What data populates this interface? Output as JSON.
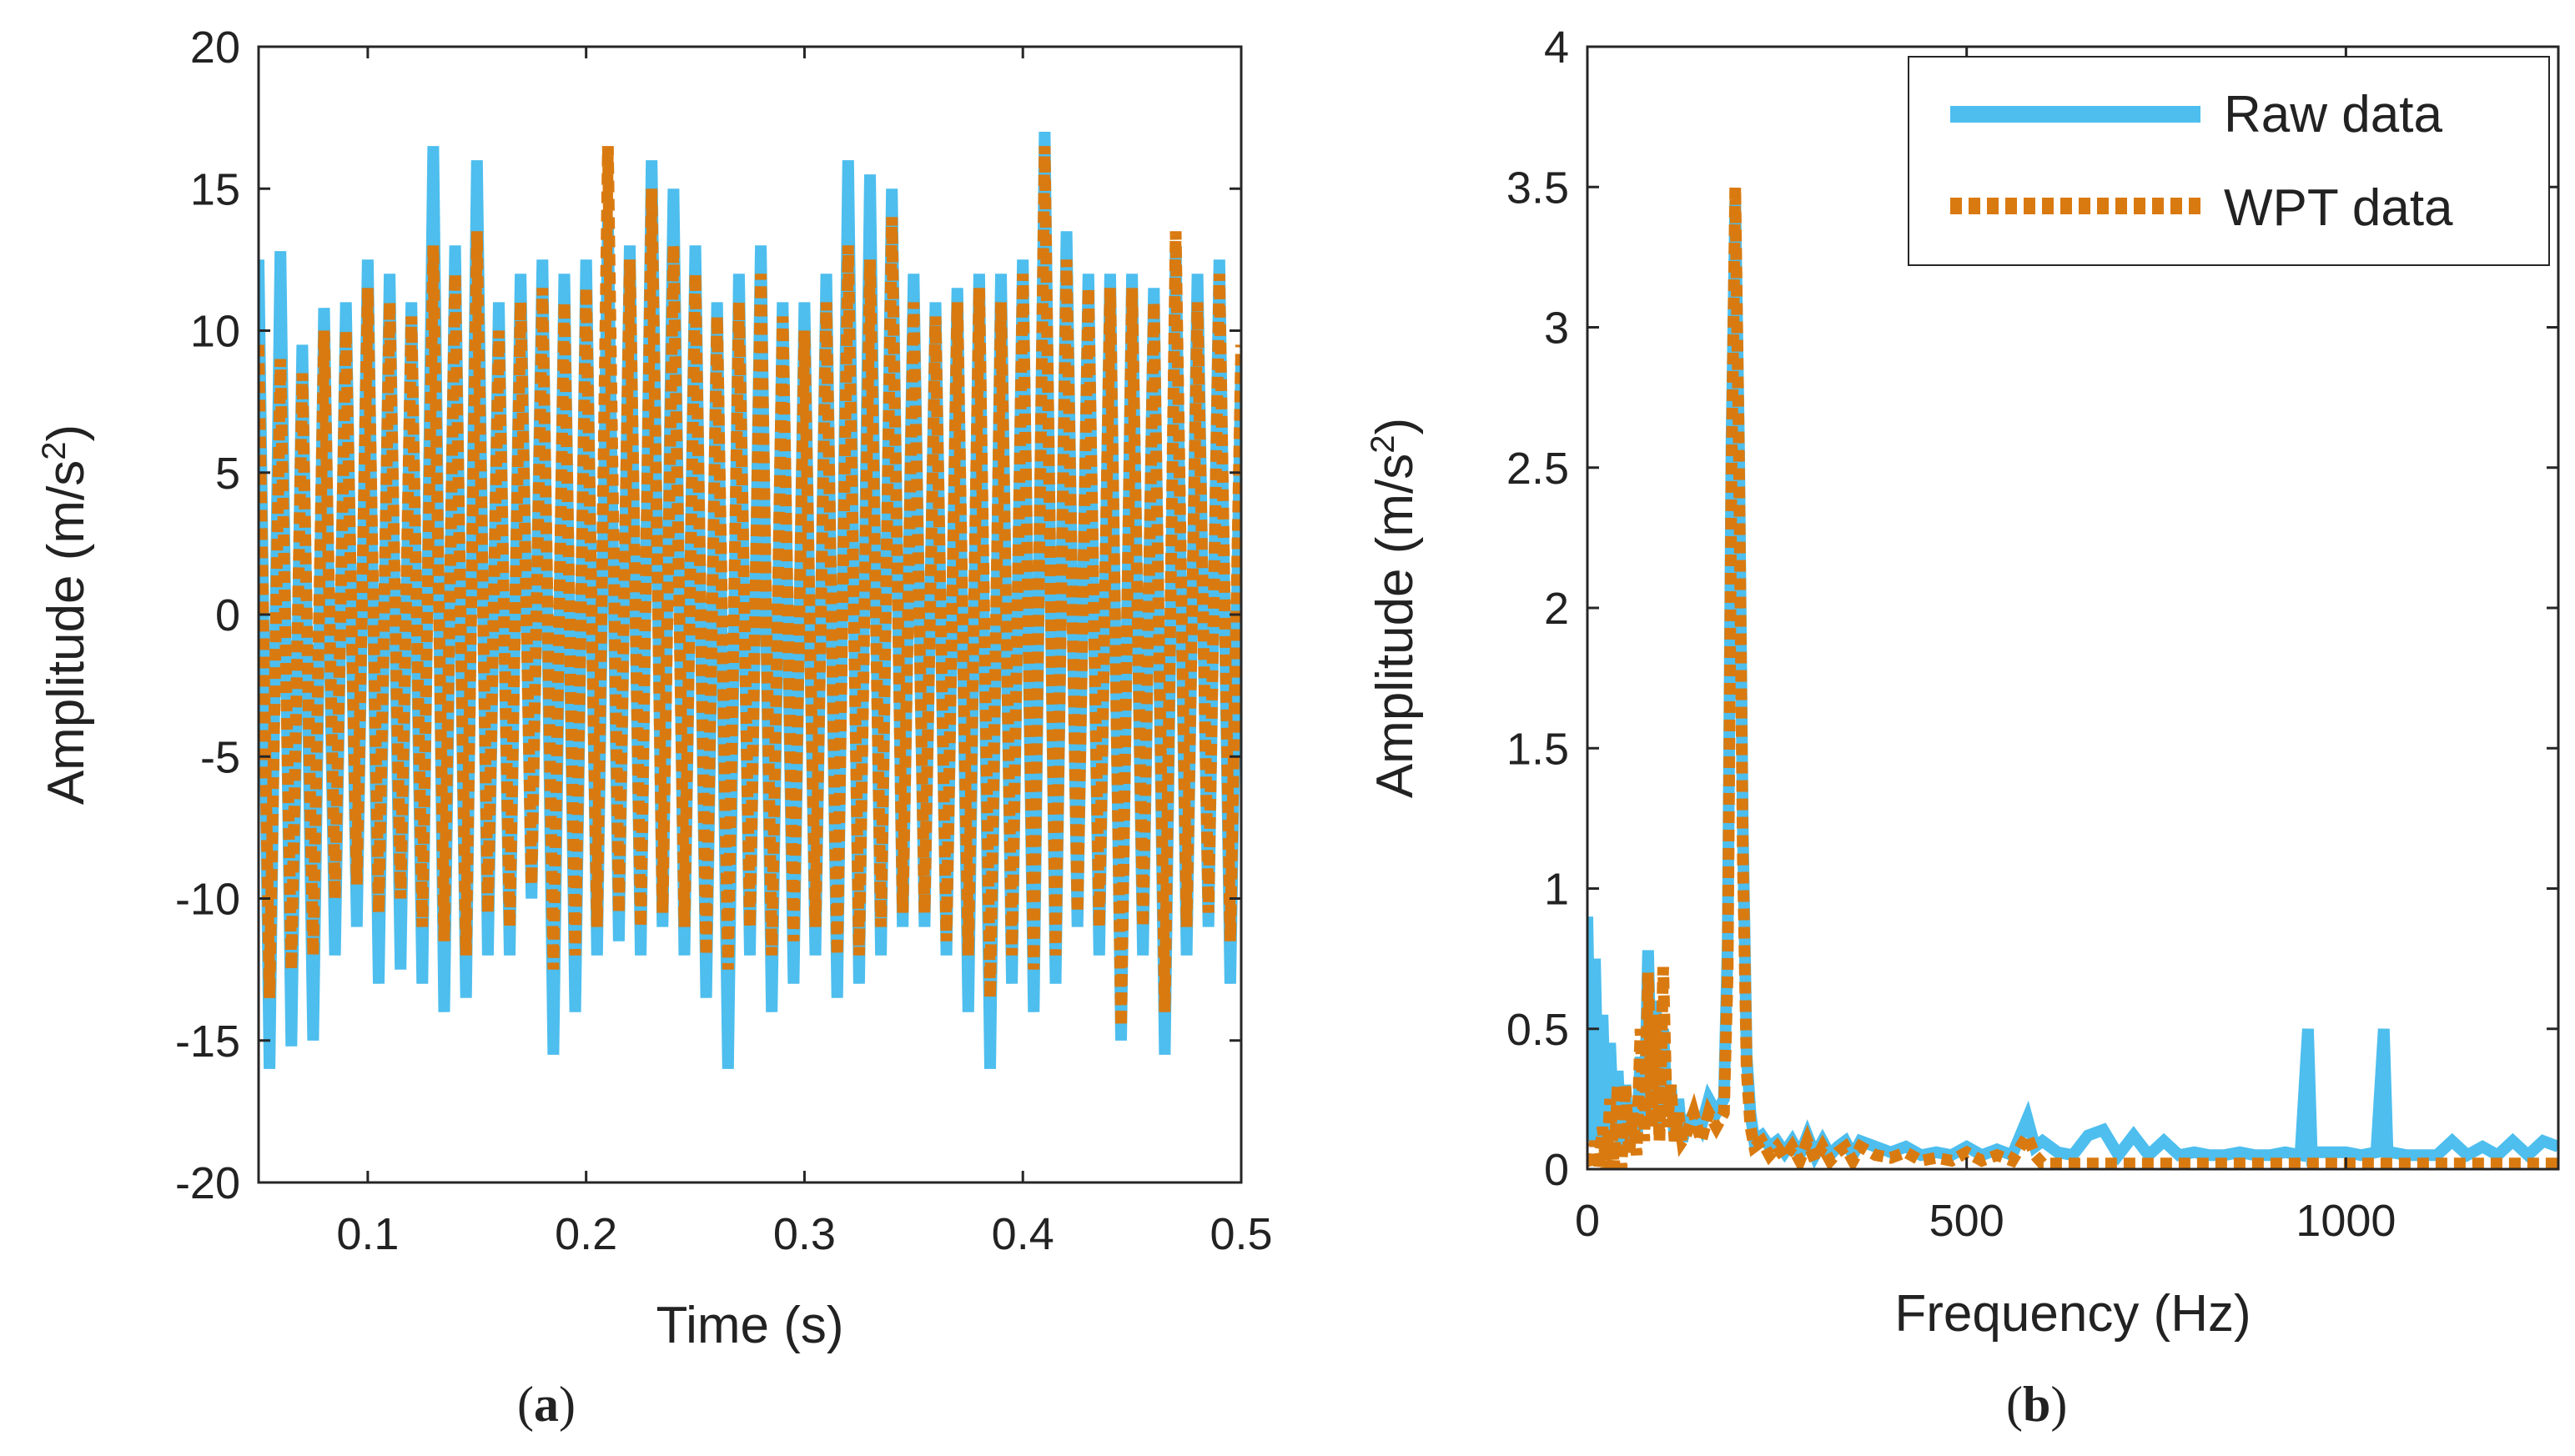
{
  "colors": {
    "raw": "#4DBEEE",
    "wpt": "#D97A10",
    "axis": "#262626"
  },
  "legend": {
    "raw_label": "Raw data",
    "wpt_label": "WPT data"
  },
  "captions": {
    "a": "a",
    "b": "b"
  },
  "chart_data": [
    {
      "type": "line",
      "panel": "a",
      "title": "",
      "xlabel": "Time (s)",
      "ylabel_main": "Amplitude (m/s",
      "ylabel_sup": "2",
      "ylabel_close": ")",
      "xlim": [
        0.05,
        0.5
      ],
      "ylim": [
        -20,
        20
      ],
      "xticks": [
        0.1,
        0.2,
        0.3,
        0.4,
        0.5
      ],
      "xtick_labels": [
        "0.1",
        "0.2",
        "0.3",
        "0.4",
        "0.5"
      ],
      "yticks": [
        -20,
        -15,
        -10,
        -5,
        0,
        5,
        10,
        15,
        20
      ],
      "ytick_labels": [
        "-20",
        "-15",
        "-10",
        "-5",
        "0",
        "5",
        "10",
        "15",
        "20"
      ],
      "series": [
        {
          "name": "Raw data",
          "x": [
            0.05,
            0.055,
            0.06,
            0.065,
            0.07,
            0.075,
            0.08,
            0.085,
            0.09,
            0.095,
            0.1,
            0.105,
            0.11,
            0.115,
            0.12,
            0.125,
            0.13,
            0.135,
            0.14,
            0.145,
            0.15,
            0.155,
            0.16,
            0.165,
            0.17,
            0.175,
            0.18,
            0.185,
            0.19,
            0.195,
            0.2,
            0.205,
            0.21,
            0.215,
            0.22,
            0.225,
            0.23,
            0.235,
            0.24,
            0.245,
            0.25,
            0.255,
            0.26,
            0.265,
            0.27,
            0.275,
            0.28,
            0.285,
            0.29,
            0.295,
            0.3,
            0.305,
            0.31,
            0.315,
            0.32,
            0.325,
            0.33,
            0.335,
            0.34,
            0.345,
            0.35,
            0.355,
            0.36,
            0.365,
            0.37,
            0.375,
            0.38,
            0.385,
            0.39,
            0.395,
            0.4,
            0.405,
            0.41,
            0.415,
            0.42,
            0.425,
            0.43,
            0.435,
            0.44,
            0.445,
            0.45,
            0.455,
            0.46,
            0.465,
            0.47,
            0.475,
            0.48,
            0.485,
            0.49,
            0.495,
            0.5
          ],
          "y": [
            12.5,
            -16,
            12.8,
            -15.2,
            9.5,
            -15,
            10.8,
            -12,
            11,
            -11,
            12.5,
            -13,
            12,
            -12.5,
            11,
            -13,
            16.5,
            -14,
            13,
            -13.5,
            16,
            -12,
            11,
            -12,
            12,
            -10,
            12.5,
            -15.5,
            12,
            -14,
            12.5,
            -12,
            14,
            -11.5,
            13,
            -12,
            16,
            -11,
            15,
            -12,
            13,
            -13.5,
            11,
            -16,
            12,
            -12,
            13,
            -14,
            11,
            -13,
            11,
            -12,
            12,
            -13.5,
            16,
            -13,
            15.5,
            -12,
            15,
            -11,
            12,
            -11,
            11,
            -12,
            11.5,
            -14,
            12,
            -16,
            12,
            -13,
            12.5,
            -14,
            17,
            -13,
            13.5,
            -11,
            12,
            -12,
            12,
            -15,
            12,
            -12,
            11.5,
            -15.5,
            13,
            -12,
            12,
            -11,
            12.5,
            -13,
            9
          ]
        },
        {
          "name": "WPT data",
          "x": [
            0.05,
            0.055,
            0.06,
            0.065,
            0.07,
            0.075,
            0.08,
            0.085,
            0.09,
            0.095,
            0.1,
            0.105,
            0.11,
            0.115,
            0.12,
            0.125,
            0.13,
            0.135,
            0.14,
            0.145,
            0.15,
            0.155,
            0.16,
            0.165,
            0.17,
            0.175,
            0.18,
            0.185,
            0.19,
            0.195,
            0.2,
            0.205,
            0.21,
            0.215,
            0.22,
            0.225,
            0.23,
            0.235,
            0.24,
            0.245,
            0.25,
            0.255,
            0.26,
            0.265,
            0.27,
            0.275,
            0.28,
            0.285,
            0.29,
            0.295,
            0.3,
            0.305,
            0.31,
            0.315,
            0.32,
            0.325,
            0.33,
            0.335,
            0.34,
            0.345,
            0.35,
            0.355,
            0.36,
            0.365,
            0.37,
            0.375,
            0.38,
            0.385,
            0.39,
            0.395,
            0.4,
            0.405,
            0.41,
            0.415,
            0.42,
            0.425,
            0.43,
            0.435,
            0.44,
            0.445,
            0.45,
            0.455,
            0.46,
            0.465,
            0.47,
            0.475,
            0.48,
            0.485,
            0.49,
            0.495,
            0.5
          ],
          "y": [
            9.5,
            -13.5,
            9,
            -12.5,
            8.5,
            -12,
            10,
            -10,
            10,
            -9.5,
            11.5,
            -10.5,
            11,
            -10,
            10.5,
            -11,
            13,
            -11.5,
            12,
            -12,
            13.5,
            -10.5,
            10,
            -11,
            11,
            -9.5,
            11.5,
            -12.5,
            11,
            -12,
            11.5,
            -11,
            16.5,
            -10.5,
            12.5,
            -11,
            15,
            -10.5,
            13,
            -11,
            12,
            -12,
            10.5,
            -12.5,
            11,
            -11,
            12,
            -12,
            10.5,
            -11.5,
            10,
            -11,
            11,
            -12,
            13,
            -12,
            12.5,
            -11,
            14,
            -10.5,
            11,
            -10.5,
            10.5,
            -11.5,
            11,
            -12,
            11.5,
            -13.5,
            11,
            -12,
            12,
            -12.5,
            16.5,
            -12,
            12.5,
            -10.5,
            11.5,
            -11,
            11.5,
            -14.5,
            11.5,
            -11,
            11,
            -14,
            13.5,
            -11,
            11,
            -10.5,
            12,
            -11.5,
            9.5
          ]
        }
      ]
    },
    {
      "type": "line",
      "panel": "b",
      "title": "",
      "xlabel": "Frequency (Hz)",
      "ylabel_main": "Amplitude (m/s",
      "ylabel_sup": "2",
      "ylabel_close": ")",
      "xlim": [
        0,
        1280
      ],
      "ylim": [
        0,
        4
      ],
      "xticks": [
        0,
        500,
        1000
      ],
      "xtick_labels": [
        "0",
        "500",
        "1000"
      ],
      "yticks": [
        0,
        0.5,
        1,
        1.5,
        2,
        2.5,
        3,
        3.5,
        4
      ],
      "ytick_labels": [
        "0",
        "0.5",
        "1",
        "1.5",
        "2",
        "2.5",
        "3",
        "3.5",
        "4"
      ],
      "legend_position": "top-right",
      "series": [
        {
          "name": "Raw data",
          "x": [
            0,
            5,
            10,
            15,
            20,
            25,
            30,
            35,
            40,
            45,
            50,
            55,
            60,
            65,
            70,
            75,
            80,
            85,
            90,
            95,
            100,
            105,
            110,
            115,
            120,
            125,
            130,
            140,
            150,
            160,
            170,
            180,
            185,
            190,
            195,
            200,
            205,
            210,
            215,
            220,
            230,
            240,
            250,
            260,
            270,
            280,
            290,
            300,
            310,
            320,
            330,
            340,
            350,
            360,
            380,
            400,
            420,
            440,
            460,
            480,
            500,
            520,
            540,
            560,
            580,
            590,
            600,
            620,
            640,
            660,
            680,
            700,
            720,
            740,
            760,
            780,
            800,
            820,
            840,
            860,
            880,
            900,
            920,
            940,
            950,
            955,
            960,
            980,
            1000,
            1020,
            1040,
            1050,
            1055,
            1060,
            1080,
            1100,
            1120,
            1140,
            1160,
            1180,
            1200,
            1220,
            1240,
            1260,
            1280
          ],
          "y": [
            0.9,
            0.1,
            0.75,
            0.1,
            0.55,
            0.05,
            0.45,
            0.1,
            0.35,
            0.05,
            0.3,
            0.1,
            0.2,
            0.1,
            0.4,
            0.15,
            0.78,
            0.2,
            0.6,
            0.15,
            0.5,
            0.2,
            0.3,
            0.1,
            0.25,
            0.1,
            0.15,
            0.2,
            0.15,
            0.25,
            0.2,
            0.25,
            0.8,
            2.6,
            3.45,
            2.55,
            1.2,
            0.4,
            0.2,
            0.1,
            0.12,
            0.08,
            0.1,
            0.06,
            0.1,
            0.05,
            0.12,
            0.05,
            0.1,
            0.05,
            0.08,
            0.1,
            0.05,
            0.1,
            0.08,
            0.06,
            0.08,
            0.05,
            0.06,
            0.05,
            0.08,
            0.05,
            0.07,
            0.05,
            0.18,
            0.08,
            0.1,
            0.06,
            0.05,
            0.12,
            0.14,
            0.05,
            0.12,
            0.05,
            0.1,
            0.05,
            0.06,
            0.05,
            0.05,
            0.06,
            0.05,
            0.05,
            0.06,
            0.05,
            0.5,
            0.05,
            0.06,
            0.06,
            0.06,
            0.05,
            0.06,
            0.5,
            0.05,
            0.06,
            0.05,
            0.05,
            0.05,
            0.1,
            0.05,
            0.08,
            0.05,
            0.1,
            0.05,
            0.1,
            0.08
          ]
        },
        {
          "name": "WPT data",
          "x": [
            0,
            5,
            10,
            15,
            20,
            25,
            30,
            35,
            40,
            45,
            50,
            55,
            60,
            65,
            70,
            75,
            80,
            85,
            90,
            95,
            100,
            105,
            110,
            115,
            120,
            125,
            130,
            140,
            150,
            160,
            170,
            180,
            185,
            190,
            195,
            200,
            205,
            210,
            215,
            220,
            230,
            240,
            250,
            260,
            270,
            280,
            290,
            300,
            310,
            320,
            330,
            340,
            350,
            360,
            380,
            400,
            420,
            440,
            460,
            480,
            500,
            520,
            540,
            560,
            580,
            590,
            600,
            620,
            640,
            660,
            680,
            700,
            720,
            740,
            760,
            780,
            800,
            820,
            840,
            860,
            880,
            900,
            920,
            940,
            950,
            955,
            960,
            980,
            1000,
            1020,
            1040,
            1050,
            1055,
            1060,
            1080,
            1100,
            1120,
            1140,
            1160,
            1180,
            1200,
            1220,
            1240,
            1260,
            1280
          ],
          "y": [
            0.05,
            0,
            0.1,
            0,
            0.15,
            0,
            0.25,
            0,
            0.3,
            0,
            0.3,
            0.05,
            0.2,
            0.05,
            0.5,
            0.1,
            0.7,
            0.15,
            0.55,
            0.1,
            0.72,
            0.15,
            0.3,
            0.1,
            0.2,
            0.1,
            0.12,
            0.2,
            0.1,
            0.2,
            0.15,
            0.2,
            0.7,
            2.5,
            3.5,
            2.5,
            1.1,
            0.35,
            0.15,
            0.08,
            0.1,
            0.05,
            0.08,
            0.04,
            0.08,
            0.03,
            0.1,
            0.03,
            0.08,
            0.03,
            0.06,
            0.08,
            0.03,
            0.08,
            0.05,
            0.04,
            0.06,
            0.03,
            0.04,
            0.03,
            0.06,
            0.03,
            0.05,
            0.03,
            0.12,
            0.05,
            0.02,
            0.02,
            0.02,
            0.02,
            0.02,
            0.02,
            0.02,
            0.02,
            0.02,
            0.02,
            0.02,
            0.02,
            0.02,
            0.02,
            0.02,
            0.02,
            0.02,
            0.02,
            0.02,
            0.02,
            0.02,
            0.02,
            0.02,
            0.02,
            0.02,
            0.02,
            0.02,
            0.02,
            0.02,
            0.02,
            0.02,
            0.02,
            0.02,
            0.02,
            0.02,
            0.02,
            0.02,
            0.02,
            0.02
          ]
        }
      ]
    }
  ]
}
